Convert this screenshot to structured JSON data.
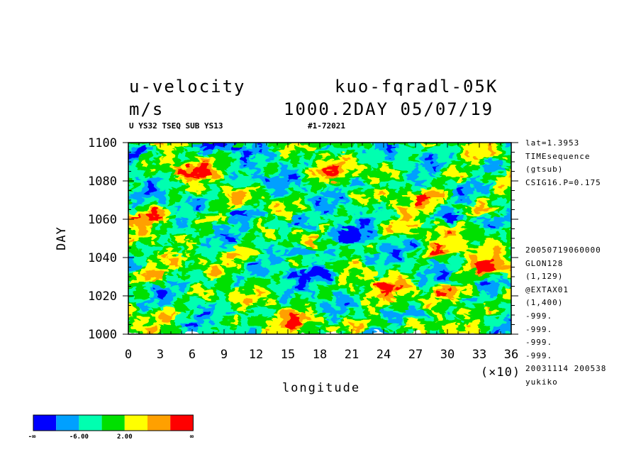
{
  "header": {
    "variable": "u-velocity",
    "experiment": "kuo-fqradl-05K",
    "units": "m/s",
    "time": "1000.2DAY 05/07/19",
    "subtitle": "U YS32 TSEQ SUB YS13",
    "run_id": "#1-72021"
  },
  "side_info_top": [
    "lat=1.3953",
    "TIMEsequence",
    "(gtsub)",
    "CSIG16.P=0.175"
  ],
  "side_info_bottom": [
    "20050719060000",
    "GLON128",
    "(1,129)",
    "@EXTAX01",
    "(1,400)",
    "-999.",
    "-999.",
    "-999.",
    "-999.",
    "20031114 200538",
    "yukiko"
  ],
  "axis_multiplier": "(×10)",
  "legend": {
    "colors": [
      "#0000ff",
      "#00a0ff",
      "#00ffb0",
      "#00e000",
      "#ffff00",
      "#ffa000",
      "#ff0000"
    ],
    "labels": [
      "-∞",
      "-6.00",
      "2.00",
      "∞"
    ]
  },
  "chart_data": {
    "type": "heatmap",
    "title": "u-velocity",
    "xlabel": "longitude",
    "ylabel": "DAY",
    "xlim": [
      0,
      360
    ],
    "ylim": [
      1000,
      1100
    ],
    "x_ticks": [
      "0",
      "3",
      "6",
      "9",
      "12",
      "15",
      "18",
      "21",
      "24",
      "27",
      "30",
      "33",
      "36"
    ],
    "y_ticks": [
      "1000",
      "1020",
      "1040",
      "1060",
      "1080",
      "1100"
    ],
    "x_multiplier": 10,
    "color_levels": [
      "<-6",
      "",
      "",
      "-6 to 2",
      "",
      "",
      ">2"
    ],
    "blobs": [
      {
        "x": 20,
        "y": 1095,
        "v": 0.1
      },
      {
        "x": 90,
        "y": 1098,
        "v": 0.15
      },
      {
        "x": 200,
        "y": 1096,
        "v": 0.2
      },
      {
        "x": 60,
        "y": 1085,
        "v": 0.9
      },
      {
        "x": 120,
        "y": 1081,
        "v": 0.2
      },
      {
        "x": 180,
        "y": 1084,
        "v": 0.85
      },
      {
        "x": 230,
        "y": 1078,
        "v": 0.15
      },
      {
        "x": 300,
        "y": 1083,
        "v": 0.8
      },
      {
        "x": 340,
        "y": 1087,
        "v": 0.2
      },
      {
        "x": 30,
        "y": 1062,
        "v": 0.95
      },
      {
        "x": 80,
        "y": 1060,
        "v": 0.85
      },
      {
        "x": 110,
        "y": 1063,
        "v": 0.0
      },
      {
        "x": 150,
        "y": 1058,
        "v": 0.1
      },
      {
        "x": 200,
        "y": 1052,
        "v": 0.0
      },
      {
        "x": 250,
        "y": 1055,
        "v": 0.8
      },
      {
        "x": 300,
        "y": 1061,
        "v": 0.05
      },
      {
        "x": 330,
        "y": 1065,
        "v": 0.95
      },
      {
        "x": 280,
        "y": 1072,
        "v": 0.9
      },
      {
        "x": 50,
        "y": 1045,
        "v": 0.25
      },
      {
        "x": 110,
        "y": 1042,
        "v": 0.9
      },
      {
        "x": 170,
        "y": 1043,
        "v": 0.0
      },
      {
        "x": 220,
        "y": 1040,
        "v": 0.2
      },
      {
        "x": 290,
        "y": 1043,
        "v": 0.85
      },
      {
        "x": 335,
        "y": 1035,
        "v": 1.0
      },
      {
        "x": 20,
        "y": 1030,
        "v": 0.9
      },
      {
        "x": 80,
        "y": 1028,
        "v": 0.15
      },
      {
        "x": 180,
        "y": 1032,
        "v": 0.0
      },
      {
        "x": 240,
        "y": 1025,
        "v": 0.8
      },
      {
        "x": 300,
        "y": 1022,
        "v": 0.95
      },
      {
        "x": 350,
        "y": 1027,
        "v": 0.2
      },
      {
        "x": 40,
        "y": 1010,
        "v": 0.8
      },
      {
        "x": 110,
        "y": 1012,
        "v": 0.2
      },
      {
        "x": 170,
        "y": 1008,
        "v": 0.85
      },
      {
        "x": 220,
        "y": 1005,
        "v": 0.95
      },
      {
        "x": 265,
        "y": 1010,
        "v": 0.0
      },
      {
        "x": 320,
        "y": 1013,
        "v": 0.85
      }
    ]
  }
}
